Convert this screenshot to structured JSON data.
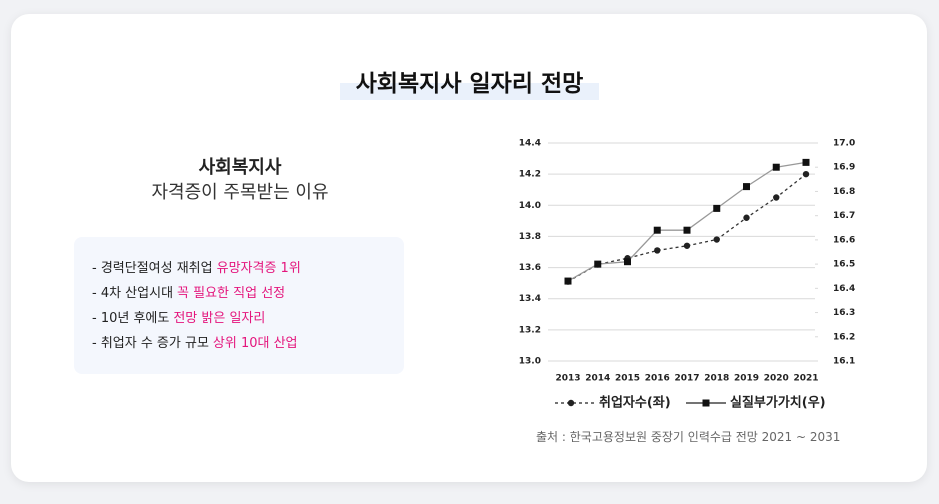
{
  "header": {
    "title": "사회복지사 일자리 전망"
  },
  "left": {
    "title": "사회복지사",
    "subtitle": "자격증이 주목받는 이유",
    "items": [
      {
        "text": "- 경력단절여성 재취업",
        "highlight": "유망자격증 1위"
      },
      {
        "text": "- 4차 산업시대",
        "highlight": "꼭 필요한 직업 선정"
      },
      {
        "text": "- 10년 후에도",
        "highlight": "전망 밝은 일자리"
      },
      {
        "text": "- 취업자 수 증가 규모",
        "highlight": "상위 10대 산업"
      }
    ]
  },
  "source": "출처 : 한국고용정보원 중장기 인력수급 전망 2021 ~ 2031",
  "chart_data": {
    "type": "line",
    "categories": [
      "2013",
      "2014",
      "2015",
      "2016",
      "2017",
      "2018",
      "2019",
      "2020",
      "2021"
    ],
    "series": [
      {
        "name": "취업자수(좌)",
        "color": "#222222",
        "line_color": "#333333",
        "dashed": true,
        "marker": "circle",
        "values": [
          13.51,
          13.62,
          13.66,
          13.71,
          13.74,
          13.78,
          13.92,
          14.05,
          14.2
        ]
      },
      {
        "name": "실질부가가치(우)",
        "color": "#111111",
        "line_color": "#999999",
        "dashed": false,
        "marker": "square",
        "axis": "y2",
        "values": [
          16.43,
          16.5,
          16.51,
          16.64,
          16.64,
          16.73,
          16.82,
          16.9,
          16.92
        ]
      }
    ],
    "ylim": [
      13.0,
      14.4
    ],
    "yticks": [
      {
        "value": 13.0,
        "label": "13.0"
      },
      13.2,
      13.4,
      13.6,
      13.8,
      {
        "value": 14.0,
        "label": "14.0"
      },
      14.2,
      14.4
    ],
    "y2lim": [
      16.1,
      17.0
    ],
    "y2ticks": [
      16.1,
      16.2,
      16.3,
      16.4,
      16.5,
      16.6,
      16.7,
      16.8,
      16.9,
      {
        "value": 17.0,
        "label": "17.0"
      }
    ],
    "grid": true
  }
}
